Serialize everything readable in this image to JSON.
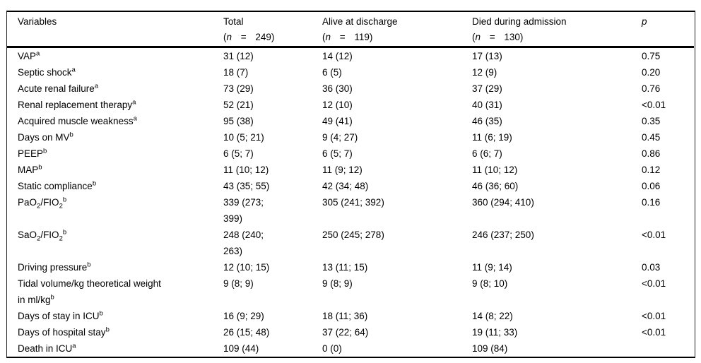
{
  "table": {
    "background": "#ffffff",
    "text_color": "#000000",
    "border_color": "#000000",
    "columns": [
      {
        "label": "Variables",
        "n_line": ""
      },
      {
        "label": "Total",
        "n_line": "(*n* = 249)"
      },
      {
        "label": "Alive at discharge",
        "n_line": "(*n* = 119)"
      },
      {
        "label": "Died during admission",
        "n_line": "(*n* = 130)"
      },
      {
        "label": "*p*",
        "n_line": ""
      }
    ],
    "rows": [
      {
        "variable": "VAP^a",
        "total": "31 (12)",
        "alive": "14 (12)",
        "died": "17 (13)",
        "p": "0.75"
      },
      {
        "variable": "Septic shock^a",
        "total": "18 (7)",
        "alive": "6 (5)",
        "died": "12 (9)",
        "p": "0.20"
      },
      {
        "variable": "Acute renal failure^a",
        "total": "73 (29)",
        "alive": "36 (30)",
        "died": "37 (29)",
        "p": "0.76"
      },
      {
        "variable": "Renal replacement therapy^a",
        "total": "52 (21)",
        "alive": "12 (10)",
        "died": "40 (31)",
        "p": "<0.01"
      },
      {
        "variable": "Acquired muscle weakness^a",
        "total": "95 (38)",
        "alive": "49 (41)",
        "died": "46 (35)",
        "p": "0.35"
      },
      {
        "variable": "Days on MV^b",
        "total": "10 (5; 21)",
        "alive": "9 (4; 27)",
        "died": "11 (6; 19)",
        "p": "0.45"
      },
      {
        "variable": "PEEP^b",
        "total": "6 (5; 7)",
        "alive": "6 (5; 7)",
        "died": "6 (6; 7)",
        "p": "0.86"
      },
      {
        "variable": "MAP^b",
        "total": "11 (10; 12)",
        "alive": "11 (9; 12)",
        "died": "11 (10; 12)",
        "p": "0.12"
      },
      {
        "variable": "Static compliance^b",
        "total": "43 (35; 55)",
        "alive": "42 (34; 48)",
        "died": "46 (36; 60)",
        "p": "0.06"
      },
      {
        "variable": "PaO~2~/FIO~2~^b",
        "total": "339 (273;\n399)",
        "alive": "305 (241; 392)",
        "died": "360 (294; 410)",
        "p": "0.16"
      },
      {
        "variable": "SaO~2~/FIO~2~^b",
        "total": "248 (240;\n263)",
        "alive": "250 (245; 278)",
        "died": "246 (237; 250)",
        "p": "<0.01"
      },
      {
        "variable": "Driving pressure^b",
        "total": "12 (10; 15)",
        "alive": "13 (11; 15)",
        "died": "11 (9; 14)",
        "p": "0.03"
      },
      {
        "variable": "Tidal volume/kg theoretical weight\nin ml/kg^b",
        "total": "9 (8; 9)",
        "alive": "9 (8; 9)",
        "died": "9 (8; 10)",
        "p": "<0.01"
      },
      {
        "variable": "Days of stay in ICU^b",
        "total": "16 (9; 29)",
        "alive": "18 (11; 36)",
        "died": "14 (8; 22)",
        "p": "<0.01"
      },
      {
        "variable": "Days of hospital stay^b",
        "total": "26 (15; 48)",
        "alive": "37 (22; 64)",
        "died": "19 (11; 33)",
        "p": "<0.01"
      },
      {
        "variable": "Death in ICU^a",
        "total": "109 (44)",
        "alive": "0 (0)",
        "died": "109 (84)",
        "p": ""
      }
    ]
  }
}
